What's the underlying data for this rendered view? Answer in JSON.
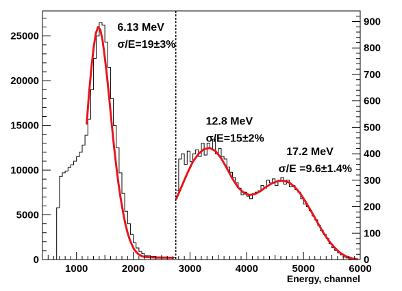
{
  "chart_data": {
    "type": "line",
    "xlabel": "Energy, channel",
    "xlim": [
      400,
      6000
    ],
    "ylim_left": [
      0,
      27800
    ],
    "ylim_right": [
      0,
      940
    ],
    "x_ticks": [
      1000,
      2000,
      3000,
      4000,
      5000,
      6000
    ],
    "y_ticks_left": [
      0,
      5000,
      10000,
      15000,
      20000,
      25000
    ],
    "y_ticks_right": [
      0,
      100,
      200,
      300,
      400,
      500,
      600,
      700,
      800,
      900
    ],
    "divider_x": 2750,
    "grid": false,
    "colors": {
      "histogram": "#000000",
      "fit": "#e8141c",
      "divider": "#000000"
    },
    "series": [
      {
        "kind": "histogram",
        "axis": "left",
        "points": [
          [
            600,
            0
          ],
          [
            650,
            5800
          ],
          [
            700,
            9300
          ],
          [
            750,
            9700
          ],
          [
            800,
            9900
          ],
          [
            850,
            10300
          ],
          [
            900,
            10600
          ],
          [
            950,
            11000
          ],
          [
            1000,
            11500
          ],
          [
            1050,
            12000
          ],
          [
            1100,
            12800
          ],
          [
            1150,
            13900
          ],
          [
            1200,
            15700
          ],
          [
            1250,
            19000
          ],
          [
            1300,
            22500
          ],
          [
            1350,
            25000
          ],
          [
            1400,
            26500
          ],
          [
            1450,
            26200
          ],
          [
            1500,
            24300
          ],
          [
            1550,
            21500
          ],
          [
            1600,
            18000
          ],
          [
            1650,
            15000
          ],
          [
            1700,
            12500
          ],
          [
            1750,
            9700
          ],
          [
            1800,
            7400
          ],
          [
            1850,
            5400
          ],
          [
            1900,
            4000
          ],
          [
            1950,
            2800
          ],
          [
            2000,
            1900
          ],
          [
            2050,
            1300
          ],
          [
            2100,
            900
          ],
          [
            2150,
            650
          ],
          [
            2200,
            450
          ],
          [
            2300,
            350
          ],
          [
            2400,
            300
          ],
          [
            2500,
            280
          ],
          [
            2600,
            260
          ],
          [
            2700,
            250
          ],
          [
            2750,
            250
          ]
        ]
      },
      {
        "kind": "histogram",
        "axis": "right",
        "points": [
          [
            2760,
            260
          ],
          [
            2800,
            380
          ],
          [
            2850,
            400
          ],
          [
            2900,
            360
          ],
          [
            2950,
            410
          ],
          [
            3000,
            370
          ],
          [
            3050,
            400
          ],
          [
            3100,
            415
          ],
          [
            3150,
            390
          ],
          [
            3200,
            440
          ],
          [
            3250,
            395
          ],
          [
            3300,
            440
          ],
          [
            3350,
            420
          ],
          [
            3400,
            455
          ],
          [
            3450,
            400
          ],
          [
            3500,
            420
          ],
          [
            3550,
            390
          ],
          [
            3600,
            380
          ],
          [
            3650,
            350
          ],
          [
            3700,
            330
          ],
          [
            3750,
            310
          ],
          [
            3800,
            290
          ],
          [
            3850,
            270
          ],
          [
            3900,
            245
          ],
          [
            3950,
            255
          ],
          [
            4000,
            240
          ],
          [
            4050,
            230
          ],
          [
            4100,
            250
          ],
          [
            4150,
            255
          ],
          [
            4200,
            260
          ],
          [
            4250,
            280
          ],
          [
            4300,
            270
          ],
          [
            4350,
            300
          ],
          [
            4400,
            290
          ],
          [
            4450,
            305
          ],
          [
            4500,
            280
          ],
          [
            4550,
            300
          ],
          [
            4600,
            310
          ],
          [
            4650,
            285
          ],
          [
            4700,
            300
          ],
          [
            4750,
            275
          ],
          [
            4800,
            280
          ],
          [
            4850,
            265
          ],
          [
            4900,
            255
          ],
          [
            4950,
            230
          ],
          [
            5000,
            210
          ],
          [
            5050,
            200
          ],
          [
            5100,
            185
          ],
          [
            5150,
            165
          ],
          [
            5200,
            150
          ],
          [
            5250,
            130
          ],
          [
            5300,
            110
          ],
          [
            5350,
            95
          ],
          [
            5400,
            80
          ],
          [
            5450,
            60
          ],
          [
            5500,
            45
          ],
          [
            5550,
            35
          ],
          [
            5600,
            25
          ],
          [
            5650,
            18
          ],
          [
            5700,
            10
          ],
          [
            5750,
            6
          ],
          [
            5800,
            2
          ],
          [
            5850,
            0
          ]
        ]
      },
      {
        "kind": "fit",
        "axis": "left",
        "points": [
          [
            1180,
            15200
          ],
          [
            1220,
            18500
          ],
          [
            1260,
            21300
          ],
          [
            1300,
            23600
          ],
          [
            1340,
            25300
          ],
          [
            1380,
            26000
          ],
          [
            1420,
            25700
          ],
          [
            1460,
            24500
          ],
          [
            1500,
            22600
          ],
          [
            1540,
            20300
          ],
          [
            1580,
            17800
          ],
          [
            1620,
            15200
          ],
          [
            1660,
            12700
          ],
          [
            1700,
            10500
          ],
          [
            1740,
            8500
          ],
          [
            1780,
            6800
          ],
          [
            1820,
            5300
          ],
          [
            1860,
            4000
          ],
          [
            1900,
            3000
          ],
          [
            1940,
            2200
          ],
          [
            1980,
            1600
          ],
          [
            2020,
            1100
          ],
          [
            2060,
            800
          ],
          [
            2100,
            550
          ],
          [
            2150,
            400
          ],
          [
            2200,
            300
          ],
          [
            2300,
            250
          ],
          [
            2400,
            220
          ],
          [
            2500,
            210
          ],
          [
            2600,
            205
          ],
          [
            2700,
            200
          ]
        ]
      },
      {
        "kind": "fit",
        "axis": "right",
        "points": [
          [
            2760,
            230
          ],
          [
            2850,
            275
          ],
          [
            2950,
            325
          ],
          [
            3050,
            370
          ],
          [
            3150,
            400
          ],
          [
            3250,
            418
          ],
          [
            3350,
            422
          ],
          [
            3450,
            410
          ],
          [
            3550,
            383
          ],
          [
            3650,
            345
          ],
          [
            3750,
            305
          ],
          [
            3850,
            272
          ],
          [
            3950,
            252
          ],
          [
            4050,
            244
          ],
          [
            4150,
            248
          ],
          [
            4250,
            260
          ],
          [
            4350,
            276
          ],
          [
            4450,
            289
          ],
          [
            4550,
            297
          ],
          [
            4650,
            298
          ],
          [
            4750,
            291
          ],
          [
            4850,
            274
          ],
          [
            4950,
            248
          ],
          [
            5050,
            214
          ],
          [
            5150,
            177
          ],
          [
            5250,
            139
          ],
          [
            5350,
            102
          ],
          [
            5450,
            70
          ],
          [
            5550,
            45
          ],
          [
            5650,
            25
          ],
          [
            5750,
            12
          ],
          [
            5850,
            5
          ],
          [
            5950,
            1
          ]
        ]
      }
    ],
    "annotations": [
      {
        "text": "6.13 MeV",
        "x": 1720,
        "y_right": 865
      },
      {
        "text": "σ/E=19±3%",
        "x": 1720,
        "y_right": 800
      },
      {
        "text": "12.8 MeV",
        "x": 3280,
        "y_right": 510
      },
      {
        "text": "σ/E=15±2%",
        "x": 3280,
        "y_right": 445
      },
      {
        "text": "17.2 MeV",
        "x": 4700,
        "y_right": 395
      },
      {
        "text": "σ/E =9.6±1.4%",
        "x": 4560,
        "y_right": 330
      }
    ]
  }
}
